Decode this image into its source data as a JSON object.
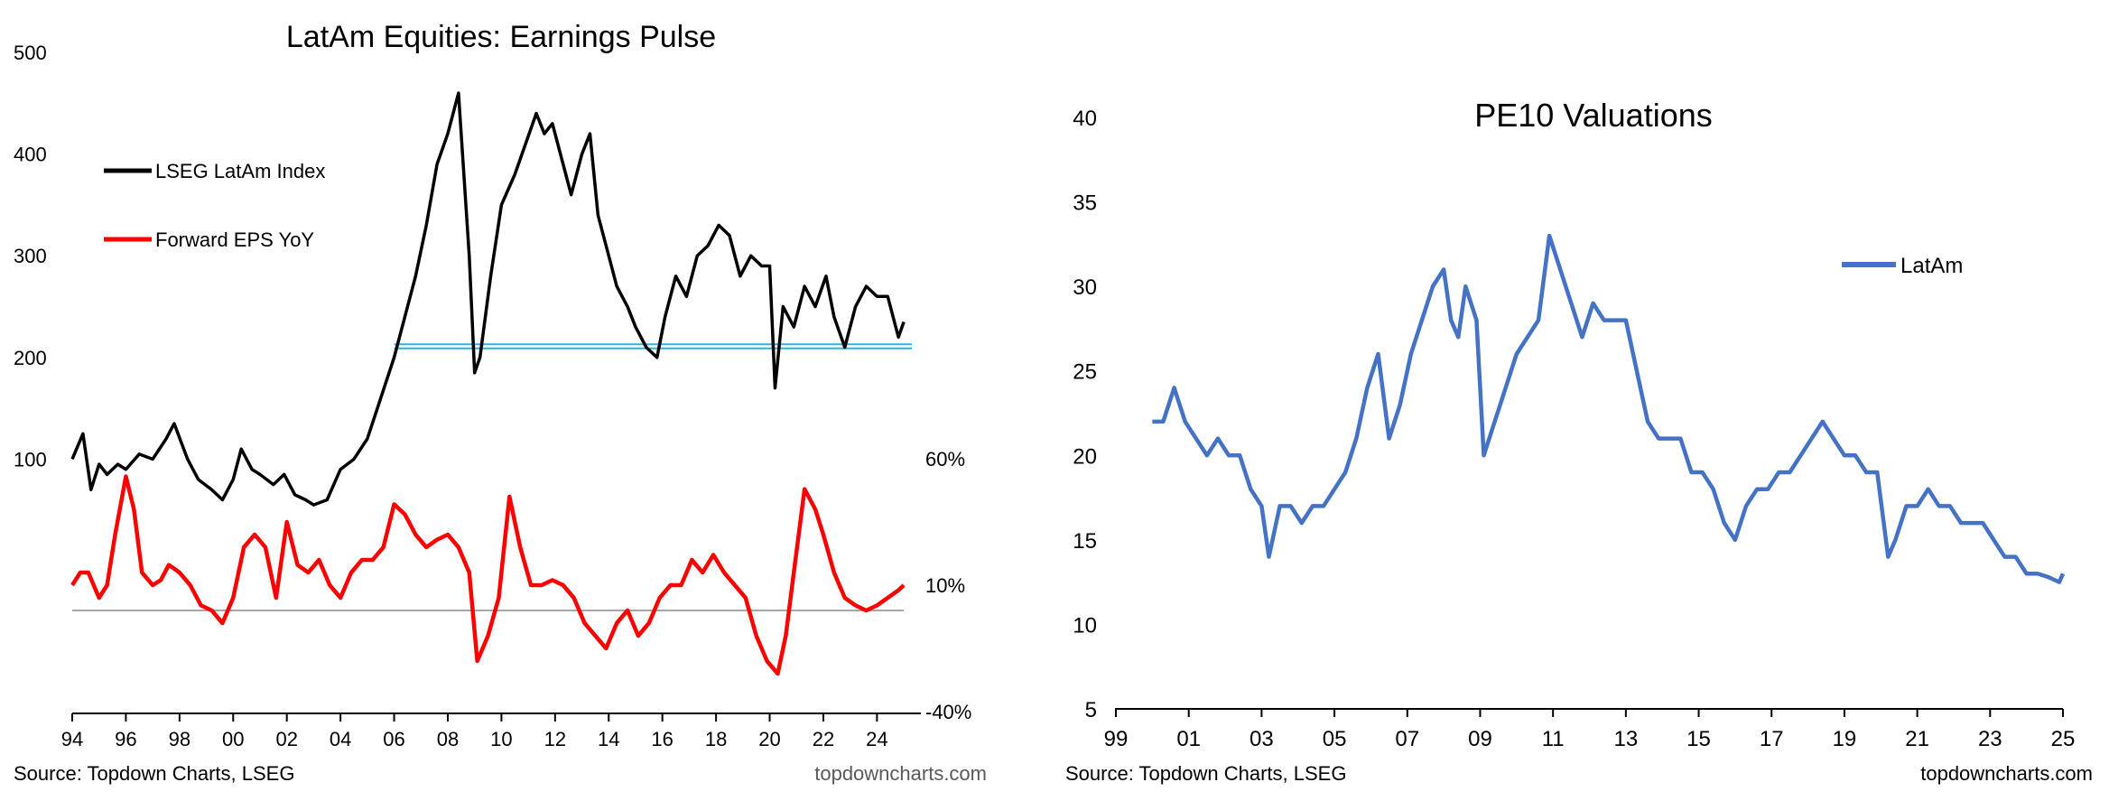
{
  "colors": {
    "index_line": "#000000",
    "eps_line": "#ff0000",
    "support_line": "#2bb5d8",
    "zero_line": "#a6a6a6",
    "pe10_line": "#4472c4",
    "axis": "#000000",
    "text": "#000000",
    "footer_text": "#595959"
  },
  "chart_data": [
    {
      "type": "line",
      "title": "LatAm Equities: Earnings Pulse",
      "source": "Source: Topdown Charts, LSEG",
      "brand": "topdowncharts.com",
      "x_ticks": [
        "94",
        "96",
        "98",
        "00",
        "02",
        "04",
        "06",
        "08",
        "10",
        "12",
        "14",
        "16",
        "18",
        "20",
        "22",
        "24"
      ],
      "xlim": [
        1994,
        2025.3
      ],
      "y_left_ticks": [
        "500",
        "400",
        "300",
        "200",
        "100"
      ],
      "y_left_values": [
        500,
        400,
        300,
        200,
        100
      ],
      "ylim_left": [
        -150,
        500
      ],
      "y_right_ticks": [
        "60%",
        "10%",
        "-40%"
      ],
      "y_right_values": [
        60,
        10,
        -40
      ],
      "ylim_right": [
        -40,
        60
      ],
      "legend_position": "top-left",
      "series": [
        {
          "name": "LSEG LatAm Index",
          "axis": "left",
          "x": [
            1994.0,
            1994.4,
            1994.7,
            1995.0,
            1995.3,
            1995.7,
            1996.0,
            1996.5,
            1997.0,
            1997.5,
            1997.8,
            1998.3,
            1998.7,
            1999.2,
            1999.6,
            2000.0,
            2000.3,
            2000.7,
            2001.0,
            2001.5,
            2001.9,
            2002.3,
            2002.7,
            2003.0,
            2003.5,
            2004.0,
            2004.5,
            2005.0,
            2005.5,
            2006.0,
            2006.4,
            2006.8,
            2007.2,
            2007.6,
            2008.0,
            2008.4,
            2008.8,
            2009.0,
            2009.2,
            2009.6,
            2010.0,
            2010.5,
            2010.9,
            2011.3,
            2011.6,
            2011.9,
            2012.3,
            2012.6,
            2013.0,
            2013.3,
            2013.6,
            2014.0,
            2014.3,
            2014.7,
            2015.0,
            2015.4,
            2015.8,
            2016.1,
            2016.5,
            2016.9,
            2017.3,
            2017.7,
            2018.1,
            2018.5,
            2018.9,
            2019.3,
            2019.7,
            2020.0,
            2020.2,
            2020.5,
            2020.9,
            2021.3,
            2021.7,
            2022.1,
            2022.4,
            2022.8,
            2023.2,
            2023.6,
            2024.0,
            2024.4,
            2024.8,
            2025.0
          ],
          "values": [
            100,
            125,
            70,
            95,
            85,
            95,
            90,
            105,
            100,
            120,
            135,
            100,
            80,
            70,
            60,
            80,
            110,
            90,
            85,
            75,
            85,
            65,
            60,
            55,
            60,
            90,
            100,
            120,
            160,
            200,
            240,
            280,
            330,
            390,
            420,
            460,
            300,
            185,
            200,
            280,
            350,
            380,
            410,
            440,
            420,
            430,
            390,
            360,
            400,
            420,
            340,
            300,
            270,
            250,
            230,
            210,
            200,
            240,
            280,
            260,
            300,
            310,
            330,
            320,
            280,
            300,
            290,
            290,
            170,
            250,
            230,
            270,
            250,
            280,
            240,
            210,
            250,
            270,
            260,
            260,
            220,
            235
          ]
        },
        {
          "name": "Forward EPS YoY",
          "axis": "right",
          "x": [
            1994.0,
            1994.3,
            1994.6,
            1995.0,
            1995.3,
            1995.6,
            1996.0,
            1996.3,
            1996.6,
            1997.0,
            1997.3,
            1997.6,
            1998.0,
            1998.4,
            1998.8,
            1999.2,
            1999.6,
            2000.0,
            2000.4,
            2000.8,
            2001.2,
            2001.6,
            2002.0,
            2002.4,
            2002.8,
            2003.2,
            2003.6,
            2004.0,
            2004.4,
            2004.8,
            2005.2,
            2005.6,
            2006.0,
            2006.4,
            2006.8,
            2007.2,
            2007.6,
            2008.0,
            2008.4,
            2008.8,
            2009.1,
            2009.5,
            2009.9,
            2010.3,
            2010.7,
            2011.1,
            2011.5,
            2011.9,
            2012.3,
            2012.7,
            2013.1,
            2013.5,
            2013.9,
            2014.3,
            2014.7,
            2015.1,
            2015.5,
            2015.9,
            2016.3,
            2016.7,
            2017.1,
            2017.5,
            2017.9,
            2018.3,
            2018.7,
            2019.1,
            2019.5,
            2019.9,
            2020.3,
            2020.6,
            2020.9,
            2021.3,
            2021.7,
            2022.0,
            2022.4,
            2022.8,
            2023.2,
            2023.6,
            2024.0,
            2024.4,
            2024.8,
            2025.0
          ],
          "values": [
            10,
            15,
            15,
            5,
            10,
            30,
            53,
            40,
            15,
            10,
            12,
            18,
            15,
            10,
            2,
            0,
            -5,
            5,
            25,
            30,
            25,
            5,
            35,
            18,
            15,
            20,
            10,
            5,
            15,
            20,
            20,
            25,
            42,
            38,
            30,
            25,
            28,
            30,
            25,
            15,
            -20,
            -10,
            5,
            45,
            25,
            10,
            10,
            12,
            10,
            5,
            -5,
            -10,
            -15,
            -5,
            0,
            -10,
            -5,
            5,
            10,
            10,
            20,
            15,
            22,
            15,
            10,
            5,
            -10,
            -20,
            -25,
            -10,
            15,
            48,
            40,
            30,
            15,
            5,
            2,
            0,
            2,
            5,
            8,
            10
          ]
        }
      ],
      "annotations": {
        "support_lines_left_values": [
          209,
          213
        ],
        "support_x_range": [
          2006.0,
          2025.3
        ],
        "zero_line_right_value": 0
      }
    },
    {
      "type": "line",
      "title": "PE10 Valuations",
      "source": "Source: Topdown Charts, LSEG",
      "brand": "topdowncharts.com",
      "x_ticks": [
        "99",
        "01",
        "03",
        "05",
        "07",
        "09",
        "11",
        "13",
        "15",
        "17",
        "19",
        "21",
        "23",
        "25"
      ],
      "xlim": [
        1999,
        2025
      ],
      "y_ticks": [
        "40",
        "35",
        "30",
        "25",
        "20",
        "15",
        "10",
        "5"
      ],
      "y_values": [
        40,
        35,
        30,
        25,
        20,
        15,
        10,
        5
      ],
      "ylim": [
        5,
        40
      ],
      "legend_position": "top-right",
      "series": [
        {
          "name": "LatAm",
          "x": [
            2000.0,
            2000.3,
            2000.6,
            2000.9,
            2001.2,
            2001.5,
            2001.8,
            2002.1,
            2002.4,
            2002.7,
            2003.0,
            2003.2,
            2003.5,
            2003.8,
            2004.1,
            2004.4,
            2004.7,
            2005.0,
            2005.3,
            2005.6,
            2005.9,
            2006.2,
            2006.5,
            2006.8,
            2007.1,
            2007.4,
            2007.7,
            2008.0,
            2008.2,
            2008.4,
            2008.6,
            2008.9,
            2009.1,
            2009.4,
            2009.7,
            2010.0,
            2010.3,
            2010.6,
            2010.9,
            2011.2,
            2011.5,
            2011.8,
            2012.1,
            2012.4,
            2012.7,
            2013.0,
            2013.3,
            2013.6,
            2013.9,
            2014.2,
            2014.5,
            2014.8,
            2015.1,
            2015.4,
            2015.7,
            2016.0,
            2016.3,
            2016.6,
            2016.9,
            2017.2,
            2017.5,
            2017.8,
            2018.1,
            2018.4,
            2018.7,
            2019.0,
            2019.3,
            2019.6,
            2019.9,
            2020.2,
            2020.4,
            2020.7,
            2021.0,
            2021.3,
            2021.6,
            2021.9,
            2022.2,
            2022.5,
            2022.8,
            2023.1,
            2023.4,
            2023.7,
            2024.0,
            2024.3,
            2024.6,
            2024.9,
            2025.0
          ],
          "values": [
            22,
            22,
            24,
            22,
            21,
            20,
            21,
            20,
            20,
            18,
            17,
            14,
            17,
            17,
            16,
            17,
            17,
            18,
            19,
            21,
            24,
            26,
            21,
            23,
            26,
            28,
            30,
            31,
            28,
            27,
            30,
            28,
            20,
            22,
            24,
            26,
            27,
            28,
            33,
            31,
            29,
            27,
            29,
            28,
            28,
            28,
            25,
            22,
            21,
            21,
            21,
            19,
            19,
            18,
            16,
            15,
            17,
            18,
            18,
            19,
            19,
            20,
            21,
            22,
            21,
            20,
            20,
            19,
            19,
            14,
            15,
            17,
            17,
            18,
            17,
            17,
            16,
            16,
            16,
            15,
            14,
            14,
            13,
            13,
            12.8,
            12.5,
            13
          ]
        }
      ]
    }
  ]
}
